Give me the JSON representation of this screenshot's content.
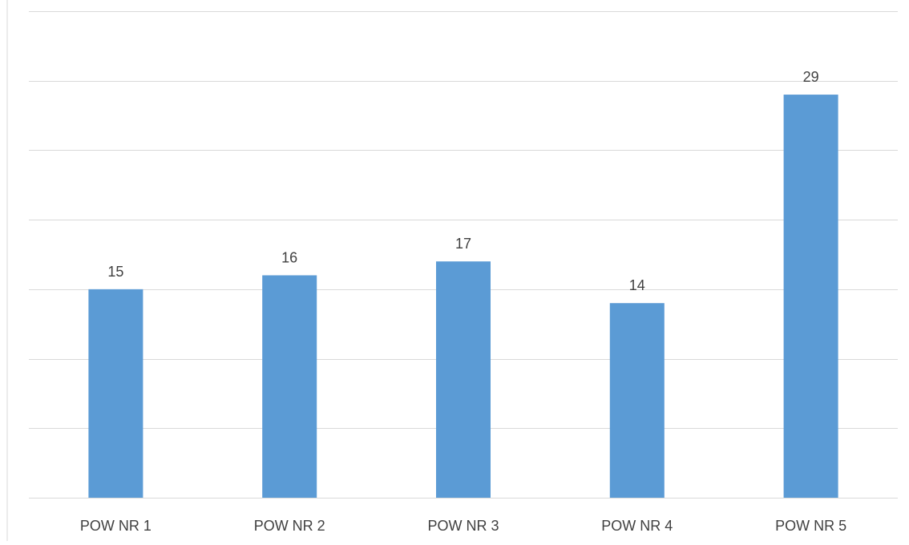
{
  "chart_data": {
    "type": "bar",
    "categories": [
      "POW NR 1",
      "POW NR 2",
      "POW NR 3",
      "POW NR 4",
      "POW NR 5"
    ],
    "values": [
      15,
      16,
      17,
      14,
      29
    ],
    "data_labels": [
      "15",
      "16",
      "17",
      "14",
      "29"
    ],
    "title": "",
    "xlabel": "",
    "ylabel": "",
    "ylim": [
      0,
      35
    ],
    "grid": true,
    "legend": "none",
    "colors": {
      "bar": "#5B9BD5",
      "gridline": "#D9D9D9",
      "axis": "#D9D9D9",
      "text": "#404040"
    }
  }
}
